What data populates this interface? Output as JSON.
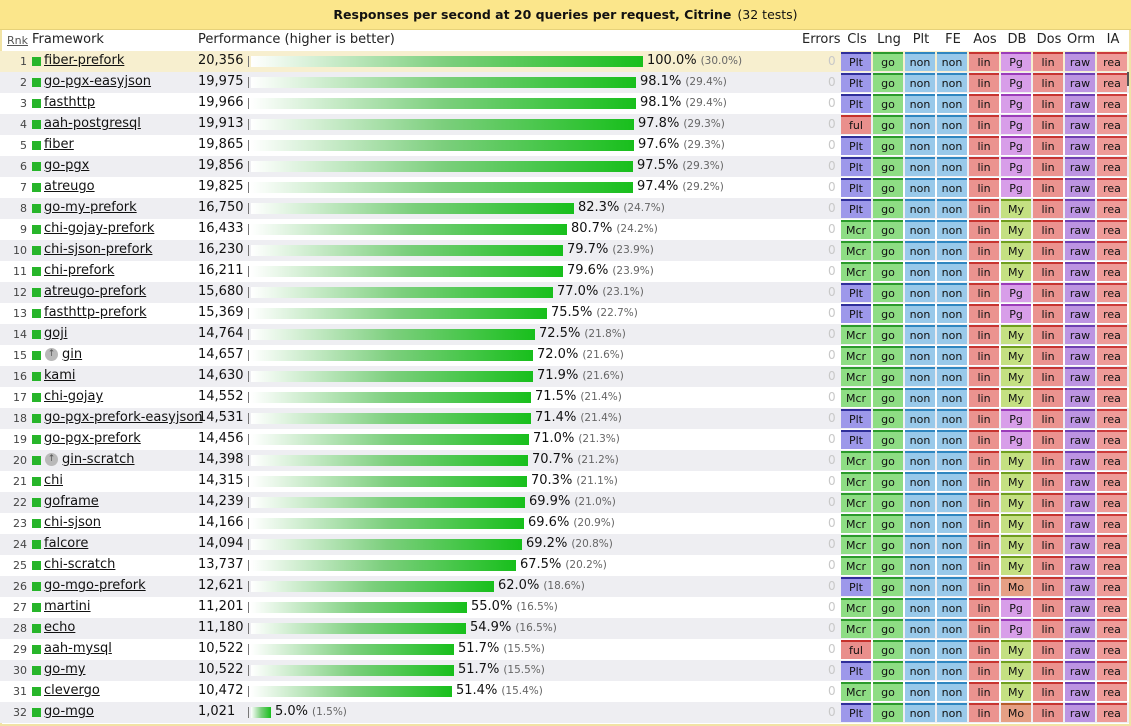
{
  "title": {
    "main": "Responses per second at 20 queries per request, Citrine",
    "count": "(32 tests)"
  },
  "header": {
    "rank": "Rnk",
    "framework": "Framework",
    "performance": "Performance (higher is better)",
    "errors": "Errors",
    "cols": [
      "Cls",
      "Lng",
      "Plt",
      "FE",
      "Aos",
      "DB",
      "Dos",
      "Orm",
      "IA"
    ]
  },
  "colors": {
    "bar_end": "#18bf1c",
    "title_bg": "#fbe68b",
    "selected_row": "#f7efcf"
  },
  "rows": [
    {
      "rank": "1",
      "name": "fiber-prefork",
      "rps": "20,356",
      "pct": "100.0%",
      "sub": "(30.0%)",
      "value": 100.0,
      "icon": false,
      "err": "0",
      "attrs": [
        "Plt",
        "go",
        "non",
        "non",
        "lin",
        "Pg",
        "lin",
        "raw",
        "rea"
      ]
    },
    {
      "rank": "2",
      "name": "go-pgx-easyjson",
      "rps": "19,975",
      "pct": "98.1%",
      "sub": "(29.4%)",
      "value": 98.1,
      "icon": false,
      "err": "0",
      "attrs": [
        "Plt",
        "go",
        "non",
        "non",
        "lin",
        "Pg",
        "lin",
        "raw",
        "rea"
      ]
    },
    {
      "rank": "3",
      "name": "fasthttp",
      "rps": "19,966",
      "pct": "98.1%",
      "sub": "(29.4%)",
      "value": 98.1,
      "icon": false,
      "err": "0",
      "attrs": [
        "Plt",
        "go",
        "non",
        "non",
        "lin",
        "Pg",
        "lin",
        "raw",
        "rea"
      ]
    },
    {
      "rank": "4",
      "name": "aah-postgresql",
      "rps": "19,913",
      "pct": "97.8%",
      "sub": "(29.3%)",
      "value": 97.8,
      "icon": false,
      "err": "0",
      "attrs": [
        "ful",
        "go",
        "non",
        "non",
        "lin",
        "Pg",
        "lin",
        "raw",
        "rea"
      ]
    },
    {
      "rank": "5",
      "name": "fiber",
      "rps": "19,865",
      "pct": "97.6%",
      "sub": "(29.3%)",
      "value": 97.6,
      "icon": false,
      "err": "0",
      "attrs": [
        "Plt",
        "go",
        "non",
        "non",
        "lin",
        "Pg",
        "lin",
        "raw",
        "rea"
      ]
    },
    {
      "rank": "6",
      "name": "go-pgx",
      "rps": "19,856",
      "pct": "97.5%",
      "sub": "(29.3%)",
      "value": 97.5,
      "icon": false,
      "err": "0",
      "attrs": [
        "Plt",
        "go",
        "non",
        "non",
        "lin",
        "Pg",
        "lin",
        "raw",
        "rea"
      ]
    },
    {
      "rank": "7",
      "name": "atreugo",
      "rps": "19,825",
      "pct": "97.4%",
      "sub": "(29.2%)",
      "value": 97.4,
      "icon": false,
      "err": "0",
      "attrs": [
        "Plt",
        "go",
        "non",
        "non",
        "lin",
        "Pg",
        "lin",
        "raw",
        "rea"
      ]
    },
    {
      "rank": "8",
      "name": "go-my-prefork",
      "rps": "16,750",
      "pct": "82.3%",
      "sub": "(24.7%)",
      "value": 82.3,
      "icon": false,
      "err": "0",
      "attrs": [
        "Plt",
        "go",
        "non",
        "non",
        "lin",
        "My",
        "lin",
        "raw",
        "rea"
      ]
    },
    {
      "rank": "9",
      "name": "chi-gojay-prefork",
      "rps": "16,433",
      "pct": "80.7%",
      "sub": "(24.2%)",
      "value": 80.7,
      "icon": false,
      "err": "0",
      "attrs": [
        "Mcr",
        "go",
        "non",
        "non",
        "lin",
        "My",
        "lin",
        "raw",
        "rea"
      ]
    },
    {
      "rank": "10",
      "name": "chi-sjson-prefork",
      "rps": "16,230",
      "pct": "79.7%",
      "sub": "(23.9%)",
      "value": 79.7,
      "icon": false,
      "err": "0",
      "attrs": [
        "Mcr",
        "go",
        "non",
        "non",
        "lin",
        "My",
        "lin",
        "raw",
        "rea"
      ]
    },
    {
      "rank": "11",
      "name": "chi-prefork",
      "rps": "16,211",
      "pct": "79.6%",
      "sub": "(23.9%)",
      "value": 79.6,
      "icon": false,
      "err": "0",
      "attrs": [
        "Mcr",
        "go",
        "non",
        "non",
        "lin",
        "My",
        "lin",
        "raw",
        "rea"
      ]
    },
    {
      "rank": "12",
      "name": "atreugo-prefork",
      "rps": "15,680",
      "pct": "77.0%",
      "sub": "(23.1%)",
      "value": 77.0,
      "icon": false,
      "err": "0",
      "attrs": [
        "Plt",
        "go",
        "non",
        "non",
        "lin",
        "Pg",
        "lin",
        "raw",
        "rea"
      ]
    },
    {
      "rank": "13",
      "name": "fasthttp-prefork",
      "rps": "15,369",
      "pct": "75.5%",
      "sub": "(22.7%)",
      "value": 75.5,
      "icon": false,
      "err": "0",
      "attrs": [
        "Plt",
        "go",
        "non",
        "non",
        "lin",
        "Pg",
        "lin",
        "raw",
        "rea"
      ]
    },
    {
      "rank": "14",
      "name": "goji",
      "rps": "14,764",
      "pct": "72.5%",
      "sub": "(21.8%)",
      "value": 72.5,
      "icon": false,
      "err": "0",
      "attrs": [
        "Mcr",
        "go",
        "non",
        "non",
        "lin",
        "My",
        "lin",
        "raw",
        "rea"
      ]
    },
    {
      "rank": "15",
      "name": "gin",
      "rps": "14,657",
      "pct": "72.0%",
      "sub": "(21.6%)",
      "value": 72.0,
      "icon": true,
      "err": "0",
      "attrs": [
        "Mcr",
        "go",
        "non",
        "non",
        "lin",
        "My",
        "lin",
        "raw",
        "rea"
      ]
    },
    {
      "rank": "16",
      "name": "kami",
      "rps": "14,630",
      "pct": "71.9%",
      "sub": "(21.6%)",
      "value": 71.9,
      "icon": false,
      "err": "0",
      "attrs": [
        "Mcr",
        "go",
        "non",
        "non",
        "lin",
        "My",
        "lin",
        "raw",
        "rea"
      ]
    },
    {
      "rank": "17",
      "name": "chi-gojay",
      "rps": "14,552",
      "pct": "71.5%",
      "sub": "(21.4%)",
      "value": 71.5,
      "icon": false,
      "err": "0",
      "attrs": [
        "Mcr",
        "go",
        "non",
        "non",
        "lin",
        "My",
        "lin",
        "raw",
        "rea"
      ]
    },
    {
      "rank": "18",
      "name": "go-pgx-prefork-easyjson",
      "rps": "14,531",
      "pct": "71.4%",
      "sub": "(21.4%)",
      "value": 71.4,
      "icon": false,
      "err": "0",
      "attrs": [
        "Plt",
        "go",
        "non",
        "non",
        "lin",
        "Pg",
        "lin",
        "raw",
        "rea"
      ]
    },
    {
      "rank": "19",
      "name": "go-pgx-prefork",
      "rps": "14,456",
      "pct": "71.0%",
      "sub": "(21.3%)",
      "value": 71.0,
      "icon": false,
      "err": "0",
      "attrs": [
        "Plt",
        "go",
        "non",
        "non",
        "lin",
        "Pg",
        "lin",
        "raw",
        "rea"
      ]
    },
    {
      "rank": "20",
      "name": "gin-scratch",
      "rps": "14,398",
      "pct": "70.7%",
      "sub": "(21.2%)",
      "value": 70.7,
      "icon": true,
      "err": "0",
      "attrs": [
        "Mcr",
        "go",
        "non",
        "non",
        "lin",
        "My",
        "lin",
        "raw",
        "rea"
      ]
    },
    {
      "rank": "21",
      "name": "chi",
      "rps": "14,315",
      "pct": "70.3%",
      "sub": "(21.1%)",
      "value": 70.3,
      "icon": false,
      "err": "0",
      "attrs": [
        "Mcr",
        "go",
        "non",
        "non",
        "lin",
        "My",
        "lin",
        "raw",
        "rea"
      ]
    },
    {
      "rank": "22",
      "name": "goframe",
      "rps": "14,239",
      "pct": "69.9%",
      "sub": "(21.0%)",
      "value": 69.9,
      "icon": false,
      "err": "0",
      "attrs": [
        "Mcr",
        "go",
        "non",
        "non",
        "lin",
        "My",
        "lin",
        "raw",
        "rea"
      ]
    },
    {
      "rank": "23",
      "name": "chi-sjson",
      "rps": "14,166",
      "pct": "69.6%",
      "sub": "(20.9%)",
      "value": 69.6,
      "icon": false,
      "err": "0",
      "attrs": [
        "Mcr",
        "go",
        "non",
        "non",
        "lin",
        "My",
        "lin",
        "raw",
        "rea"
      ]
    },
    {
      "rank": "24",
      "name": "falcore",
      "rps": "14,094",
      "pct": "69.2%",
      "sub": "(20.8%)",
      "value": 69.2,
      "icon": false,
      "err": "0",
      "attrs": [
        "Mcr",
        "go",
        "non",
        "non",
        "lin",
        "My",
        "lin",
        "raw",
        "rea"
      ]
    },
    {
      "rank": "25",
      "name": "chi-scratch",
      "rps": "13,737",
      "pct": "67.5%",
      "sub": "(20.2%)",
      "value": 67.5,
      "icon": false,
      "err": "0",
      "attrs": [
        "Mcr",
        "go",
        "non",
        "non",
        "lin",
        "My",
        "lin",
        "raw",
        "rea"
      ]
    },
    {
      "rank": "26",
      "name": "go-mgo-prefork",
      "rps": "12,621",
      "pct": "62.0%",
      "sub": "(18.6%)",
      "value": 62.0,
      "icon": false,
      "err": "0",
      "attrs": [
        "Plt",
        "go",
        "non",
        "non",
        "lin",
        "Mo",
        "lin",
        "raw",
        "rea"
      ]
    },
    {
      "rank": "27",
      "name": "martini",
      "rps": "11,201",
      "pct": "55.0%",
      "sub": "(16.5%)",
      "value": 55.0,
      "icon": false,
      "err": "0",
      "attrs": [
        "Mcr",
        "go",
        "non",
        "non",
        "lin",
        "Pg",
        "lin",
        "raw",
        "rea"
      ]
    },
    {
      "rank": "28",
      "name": "echo",
      "rps": "11,180",
      "pct": "54.9%",
      "sub": "(16.5%)",
      "value": 54.9,
      "icon": false,
      "err": "0",
      "attrs": [
        "Mcr",
        "go",
        "non",
        "non",
        "lin",
        "Pg",
        "lin",
        "raw",
        "rea"
      ]
    },
    {
      "rank": "29",
      "name": "aah-mysql",
      "rps": "10,522",
      "pct": "51.7%",
      "sub": "(15.5%)",
      "value": 51.7,
      "icon": false,
      "err": "0",
      "attrs": [
        "ful",
        "go",
        "non",
        "non",
        "lin",
        "My",
        "lin",
        "raw",
        "rea"
      ]
    },
    {
      "rank": "30",
      "name": "go-my",
      "rps": "10,522",
      "pct": "51.7%",
      "sub": "(15.5%)",
      "value": 51.7,
      "icon": false,
      "err": "0",
      "attrs": [
        "Plt",
        "go",
        "non",
        "non",
        "lin",
        "My",
        "lin",
        "raw",
        "rea"
      ]
    },
    {
      "rank": "31",
      "name": "clevergo",
      "rps": "10,472",
      "pct": "51.4%",
      "sub": "(15.4%)",
      "value": 51.4,
      "icon": false,
      "err": "0",
      "attrs": [
        "Mcr",
        "go",
        "non",
        "non",
        "lin",
        "My",
        "lin",
        "raw",
        "rea"
      ]
    },
    {
      "rank": "32",
      "name": "go-mgo",
      "rps": "1,021",
      "pct": "5.0%",
      "sub": "(1.5%)",
      "value": 5.0,
      "icon": false,
      "err": "0",
      "attrs": [
        "Plt",
        "go",
        "non",
        "non",
        "lin",
        "Mo",
        "lin",
        "raw",
        "rea"
      ]
    }
  ]
}
